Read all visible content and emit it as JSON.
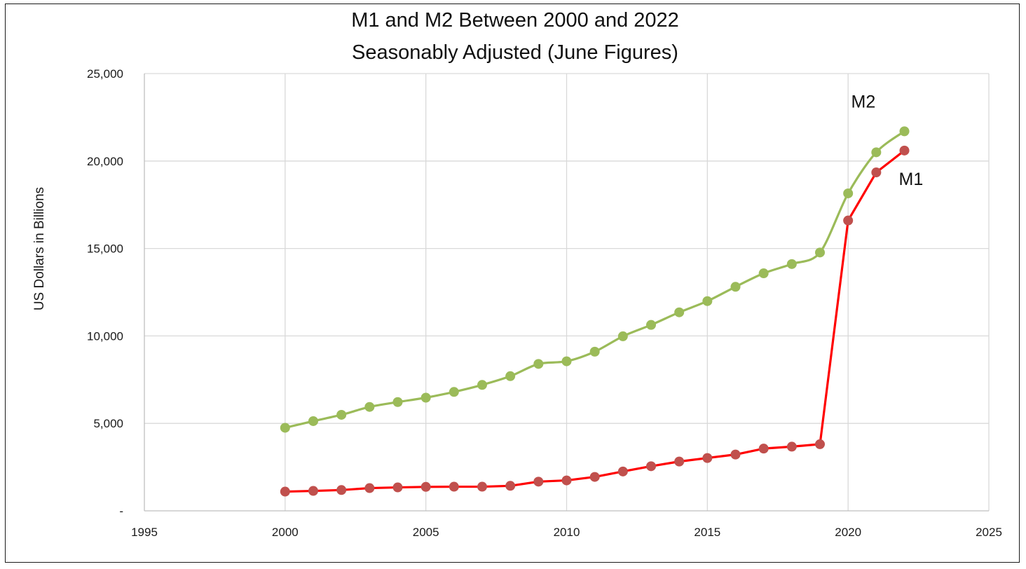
{
  "chart_data": {
    "type": "line",
    "title": "M1 and M2 Between 2000 and 2022",
    "subtitle": "Seasonably Adjusted (June Figures)",
    "xlabel": "",
    "ylabel": "US Dollars in Billions",
    "xlim": [
      1995,
      2025
    ],
    "ylim": [
      0,
      25000
    ],
    "x_ticks": [
      1995,
      2000,
      2005,
      2010,
      2015,
      2020,
      2025
    ],
    "x_tick_labels": [
      "1995",
      "2000",
      "2005",
      "2010",
      "2015",
      "2020",
      "2025"
    ],
    "y_ticks": [
      0,
      5000,
      10000,
      15000,
      20000,
      25000
    ],
    "y_tick_labels": [
      "-",
      "5,000",
      "10,000",
      "15,000",
      "20,000",
      "25,000"
    ],
    "grid": true,
    "legend": "none",
    "x": [
      2000,
      2001,
      2002,
      2003,
      2004,
      2005,
      2006,
      2007,
      2008,
      2009,
      2010,
      2011,
      2012,
      2013,
      2014,
      2015,
      2016,
      2017,
      2018,
      2019,
      2020,
      2021,
      2022
    ],
    "series": [
      {
        "name": "M2",
        "line_color": "#9bbb59",
        "marker_color": "#9bbb59",
        "smooth": true,
        "values": [
          4750,
          5130,
          5490,
          5940,
          6220,
          6470,
          6800,
          7200,
          7700,
          8400,
          8550,
          9100,
          9980,
          10630,
          11350,
          11990,
          12810,
          13580,
          14110,
          14770,
          18150,
          20500,
          21700
        ]
      },
      {
        "name": "M1",
        "line_color": "#ff0000",
        "marker_color": "#c0504d",
        "smooth": false,
        "values": [
          1100,
          1140,
          1190,
          1300,
          1340,
          1370,
          1380,
          1380,
          1430,
          1670,
          1740,
          1940,
          2250,
          2550,
          2820,
          3020,
          3220,
          3560,
          3670,
          3810,
          16600,
          19350,
          20600
        ]
      }
    ]
  }
}
